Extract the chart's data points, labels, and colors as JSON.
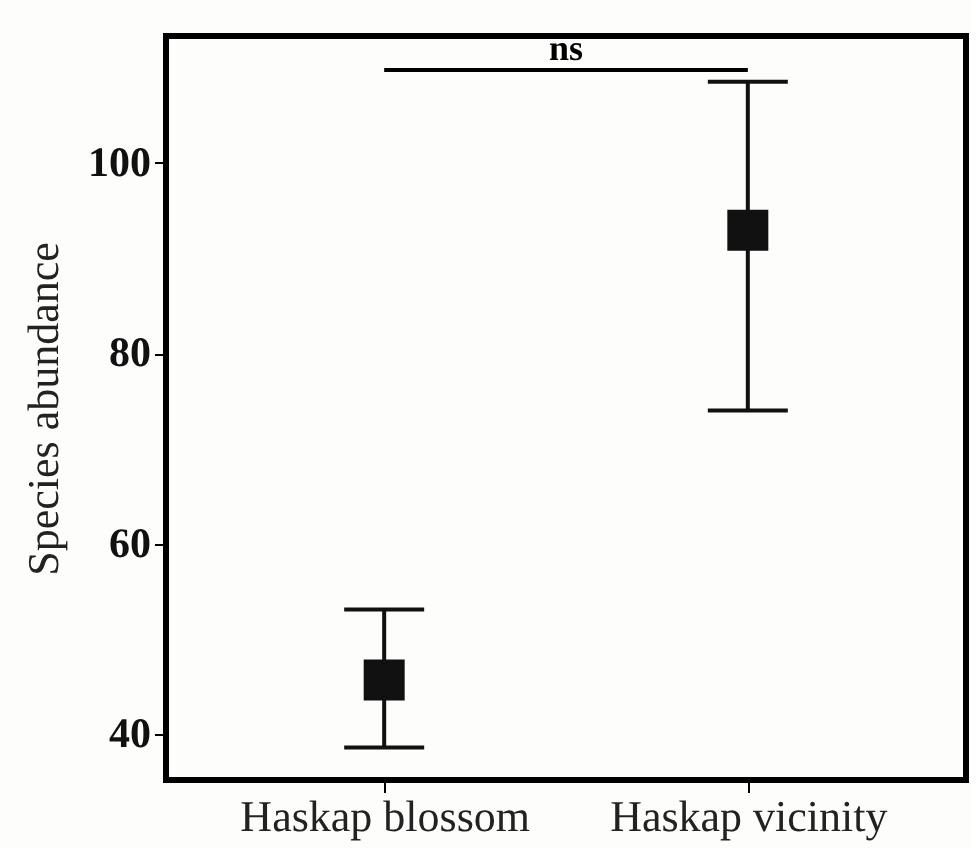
{
  "chart_data": {
    "type": "scatter",
    "ylabel": "Species abundance",
    "categories": [
      "Haskap blossom",
      "Haskap vicinity"
    ],
    "values": [
      45.7,
      92.9
    ],
    "errors": [
      [
        38.6,
        53.1
      ],
      [
        74.0,
        108.5
      ]
    ],
    "color": "#111111",
    "marker": "square",
    "ylim": [
      35.2,
      113.3
    ],
    "yticks": [
      40,
      60,
      80,
      100
    ],
    "grid": false,
    "annotations": [
      "ns"
    ]
  }
}
